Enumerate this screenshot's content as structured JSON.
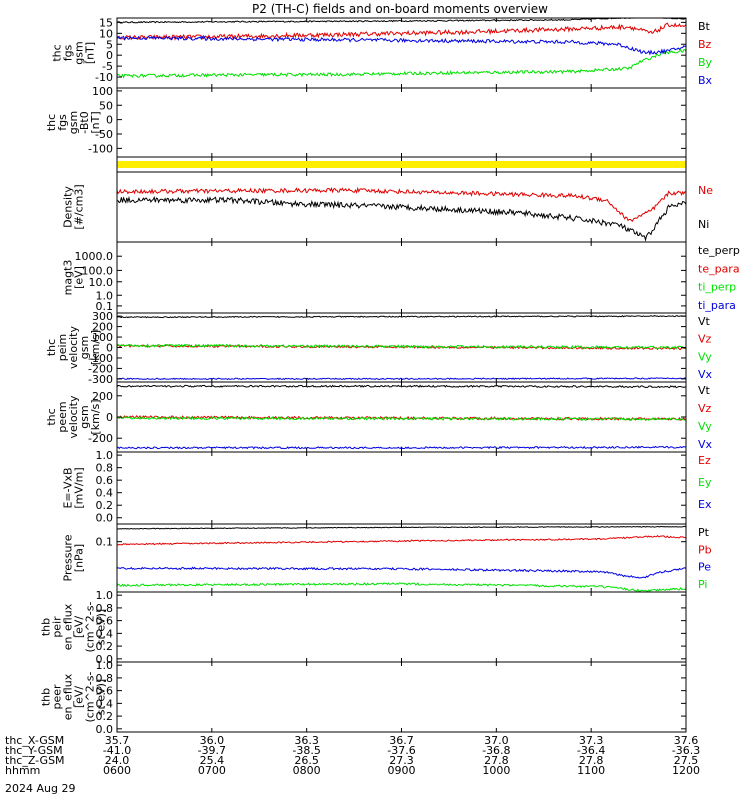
{
  "title": "P2 (TH-C) fields and on-board moments overview",
  "date": "2024 Aug 29",
  "colors": {
    "black": "#000000",
    "red": "#e00000",
    "green": "#00e000",
    "blue": "#0000e0",
    "yellow": "#ffee00"
  },
  "chart_data": [
    {
      "type": "line",
      "ylabel_lines": [
        "thc",
        "fgs",
        "gsm",
        "[nT]"
      ],
      "ylim": [
        -15,
        17
      ],
      "yticks": [
        {
          "v": 15,
          "t": "15"
        },
        {
          "v": 10,
          "t": "10"
        },
        {
          "v": 5,
          "t": "5"
        },
        {
          "v": 0,
          "t": "0"
        },
        {
          "v": -5,
          "t": "-5"
        },
        {
          "v": -10,
          "t": "-10"
        }
      ],
      "series": [
        {
          "name": "Bt",
          "color": "black",
          "points": [
            [
              0,
              15
            ],
            [
              0.2,
              15.3
            ],
            [
              0.4,
              15.5
            ],
            [
              0.6,
              15.8
            ],
            [
              0.8,
              16.2
            ],
            [
              0.88,
              17
            ],
            [
              0.94,
              17.5
            ],
            [
              1,
              16.5
            ]
          ],
          "noise": 0.3
        },
        {
          "name": "Bz",
          "color": "red",
          "points": [
            [
              0,
              8
            ],
            [
              0.2,
              8.5
            ],
            [
              0.4,
              9.5
            ],
            [
              0.6,
              10.5
            ],
            [
              0.8,
              12
            ],
            [
              0.9,
              13
            ],
            [
              0.94,
              10
            ],
            [
              0.97,
              14
            ],
            [
              1,
              13
            ]
          ],
          "noise": 1.0
        },
        {
          "name": "By",
          "color": "green",
          "points": [
            [
              0,
              -9.5
            ],
            [
              0.2,
              -9
            ],
            [
              0.4,
              -8.8
            ],
            [
              0.6,
              -8
            ],
            [
              0.8,
              -7.5
            ],
            [
              0.9,
              -6
            ],
            [
              0.92,
              -3
            ],
            [
              0.96,
              1
            ],
            [
              1,
              2
            ]
          ],
          "noise": 0.7
        },
        {
          "name": "Bx",
          "color": "blue",
          "points": [
            [
              0,
              8
            ],
            [
              0.2,
              7.5
            ],
            [
              0.4,
              7
            ],
            [
              0.6,
              6.5
            ],
            [
              0.8,
              6
            ],
            [
              0.88,
              5
            ],
            [
              0.93,
              1
            ],
            [
              0.97,
              2
            ],
            [
              1,
              4
            ]
          ],
          "noise": 0.8
        }
      ]
    },
    {
      "type": "line",
      "ylabel_lines": [
        "thc",
        "fgs",
        "gsm",
        "-Bt0",
        "[nT]"
      ],
      "ylim": [
        -130,
        110
      ],
      "yticks": [
        {
          "v": 100,
          "t": "100"
        },
        {
          "v": 50,
          "t": "50"
        },
        {
          "v": 0,
          "t": "0"
        },
        {
          "v": -50,
          "t": "-50"
        },
        {
          "v": -100,
          "t": "-100"
        }
      ],
      "series": []
    },
    {
      "type": "bar",
      "ylabel_lines": [],
      "yticks": [],
      "series": []
    },
    {
      "type": "line",
      "ylabel_lines": [
        "Density",
        "[#/cm3]"
      ],
      "ylim": [
        0,
        1
      ],
      "yticks": [],
      "series": [
        {
          "name": "Ne",
          "color": "red",
          "points": [
            [
              0,
              0.72
            ],
            [
              0.2,
              0.73
            ],
            [
              0.4,
              0.74
            ],
            [
              0.6,
              0.7
            ],
            [
              0.8,
              0.66
            ],
            [
              0.86,
              0.6
            ],
            [
              0.9,
              0.3
            ],
            [
              0.94,
              0.45
            ],
            [
              0.97,
              0.7
            ],
            [
              1,
              0.7
            ]
          ],
          "noise": 0.03
        },
        {
          "name": "Ni",
          "color": "black",
          "points": [
            [
              0,
              0.6
            ],
            [
              0.2,
              0.6
            ],
            [
              0.3,
              0.55
            ],
            [
              0.5,
              0.5
            ],
            [
              0.7,
              0.42
            ],
            [
              0.8,
              0.34
            ],
            [
              0.88,
              0.25
            ],
            [
              0.93,
              0.05
            ],
            [
              0.97,
              0.5
            ],
            [
              1,
              0.55
            ]
          ],
          "noise": 0.04
        }
      ]
    },
    {
      "type": "line",
      "ylabel_lines": [
        "magt3",
        "[eV]"
      ],
      "ylim": [
        0,
        1
      ],
      "yticks": [
        {
          "v": 0.8,
          "t": "1000.0"
        },
        {
          "v": 0.6,
          "t": "100.0"
        },
        {
          "v": 0.44,
          "t": "10.0"
        },
        {
          "v": 0.25,
          "t": "1.0"
        },
        {
          "v": 0.1,
          "t": "0.1"
        }
      ],
      "series": [
        {
          "name": "te_perp",
          "color": "black",
          "points": [],
          "noise": 0
        },
        {
          "name": "te_para",
          "color": "red",
          "points": [],
          "noise": 0
        },
        {
          "name": "ti_perp",
          "color": "green",
          "points": [],
          "noise": 0
        },
        {
          "name": "ti_para",
          "color": "blue",
          "points": [],
          "noise": 0
        }
      ]
    },
    {
      "type": "line",
      "ylabel_lines": [
        "thc",
        "peim",
        "velocity",
        "gsm",
        "[km/s]"
      ],
      "ylim": [
        -330,
        330
      ],
      "yticks": [
        {
          "v": 300,
          "t": "300"
        },
        {
          "v": 200,
          "t": "200"
        },
        {
          "v": 100,
          "t": "100"
        },
        {
          "v": 0,
          "t": "0"
        },
        {
          "v": -100,
          "t": "-100"
        },
        {
          "v": -200,
          "t": "-200"
        },
        {
          "v": -300,
          "t": "-300"
        }
      ],
      "series": [
        {
          "name": "Vt",
          "color": "black",
          "points": [
            [
              0,
              290
            ],
            [
              0.5,
              295
            ],
            [
              1,
              300
            ]
          ],
          "noise": 5
        },
        {
          "name": "Vz",
          "color": "red",
          "points": [
            [
              0,
              15
            ],
            [
              0.5,
              5
            ],
            [
              1,
              -10
            ]
          ],
          "noise": 10
        },
        {
          "name": "Vy",
          "color": "green",
          "points": [
            [
              0,
              20
            ],
            [
              0.5,
              10
            ],
            [
              1,
              0
            ]
          ],
          "noise": 12
        },
        {
          "name": "Vx",
          "color": "blue",
          "points": [
            [
              0,
              -300
            ],
            [
              0.5,
              -300
            ],
            [
              1,
              -295
            ]
          ],
          "noise": 6
        }
      ]
    },
    {
      "type": "line",
      "ylabel_lines": [
        "thc",
        "peem",
        "velocity",
        "gsm",
        "[km/s]"
      ],
      "ylim": [
        -330,
        330
      ],
      "yticks": [
        {
          "v": 200,
          "t": "200"
        },
        {
          "v": 0,
          "t": "0"
        },
        {
          "v": -200,
          "t": "-200"
        }
      ],
      "series": [
        {
          "name": "Vt",
          "color": "black",
          "points": [
            [
              0,
              290
            ],
            [
              0.5,
              290
            ],
            [
              1,
              285
            ]
          ],
          "noise": 8
        },
        {
          "name": "Vz",
          "color": "red",
          "points": [
            [
              0,
              0
            ],
            [
              0.5,
              -10
            ],
            [
              1,
              -20
            ]
          ],
          "noise": 12
        },
        {
          "name": "Vy",
          "color": "green",
          "points": [
            [
              0,
              -10
            ],
            [
              0.5,
              -15
            ],
            [
              1,
              -20
            ]
          ],
          "noise": 12
        },
        {
          "name": "Vx",
          "color": "blue",
          "points": [
            [
              0,
              -290
            ],
            [
              0.5,
              -290
            ],
            [
              1,
              -285
            ]
          ],
          "noise": 8
        }
      ]
    },
    {
      "type": "line",
      "ylabel_lines": [
        "E=-VxB",
        "[mV/m]"
      ],
      "ylim": [
        -0.1,
        1.05
      ],
      "yticks": [
        {
          "v": 1.0,
          "t": "1.0"
        },
        {
          "v": 0.8,
          "t": "0.8"
        },
        {
          "v": 0.6,
          "t": "0.6"
        },
        {
          "v": 0.4,
          "t": "0.4"
        },
        {
          "v": 0.2,
          "t": "0.2"
        },
        {
          "v": 0.0,
          "t": "0.0"
        }
      ],
      "series": [
        {
          "name": "Ez",
          "color": "red",
          "points": [],
          "noise": 0
        },
        {
          "name": "Ey",
          "color": "green",
          "points": [],
          "noise": 0
        },
        {
          "name": "Ex",
          "color": "blue",
          "points": [],
          "noise": 0
        }
      ]
    },
    {
      "type": "line",
      "ylabel_lines": [
        "Pressure",
        "[nPa]"
      ],
      "ylim": [
        0,
        1
      ],
      "yticks": [
        {
          "v": 0.74,
          "t": "0.1"
        }
      ],
      "series": [
        {
          "name": "Pt",
          "color": "black",
          "points": [
            [
              0,
              0.93
            ],
            [
              0.5,
              0.95
            ],
            [
              1,
              0.96
            ]
          ],
          "noise": 0.005
        },
        {
          "name": "Pb",
          "color": "red",
          "points": [
            [
              0,
              0.7
            ],
            [
              0.5,
              0.75
            ],
            [
              0.85,
              0.78
            ],
            [
              0.95,
              0.82
            ],
            [
              1,
              0.8
            ]
          ],
          "noise": 0.01
        },
        {
          "name": "Pe",
          "color": "blue",
          "points": [
            [
              0,
              0.35
            ],
            [
              0.5,
              0.34
            ],
            [
              0.85,
              0.3
            ],
            [
              0.92,
              0.2
            ],
            [
              0.96,
              0.3
            ],
            [
              1,
              0.35
            ]
          ],
          "noise": 0.015
        },
        {
          "name": "Pi",
          "color": "green",
          "points": [
            [
              0,
              0.1
            ],
            [
              0.5,
              0.12
            ],
            [
              0.85,
              0.08
            ],
            [
              0.92,
              0.02
            ],
            [
              1,
              0.05
            ]
          ],
          "noise": 0.015
        }
      ]
    },
    {
      "type": "line",
      "ylabel_lines": [
        "thb",
        "peir",
        "en_eflux",
        "[eV/",
        "(cm^2-s-",
        "sr-eV)]"
      ],
      "ylim": [
        -0.05,
        1.05
      ],
      "yticks": [
        {
          "v": 1.0,
          "t": "1.0"
        },
        {
          "v": 0.8,
          "t": "0.8"
        },
        {
          "v": 0.6,
          "t": "0.6"
        },
        {
          "v": 0.4,
          "t": "0.4"
        },
        {
          "v": 0.2,
          "t": "0.2"
        },
        {
          "v": 0.0,
          "t": "0.0"
        }
      ],
      "series": []
    },
    {
      "type": "line",
      "ylabel_lines": [
        "thb",
        "peer",
        "en_eflux",
        "[eV/",
        "(cm^2-s-",
        "sr-eV)]"
      ],
      "ylim": [
        -0.05,
        1.05
      ],
      "yticks": [
        {
          "v": 1.0,
          "t": "1.0"
        },
        {
          "v": 0.8,
          "t": "0.8"
        },
        {
          "v": 0.6,
          "t": "0.6"
        },
        {
          "v": 0.4,
          "t": "0.4"
        },
        {
          "v": 0.2,
          "t": "0.2"
        },
        {
          "v": 0.0,
          "t": "0.0"
        }
      ],
      "series": []
    }
  ],
  "x_axis": {
    "row_labels": [
      "thc_X-GSM",
      "thc_Y-GSM",
      "thc_Z-GSM",
      "hhmm"
    ],
    "columns": [
      [
        "35.7",
        "-41.0",
        "24.0",
        "0600"
      ],
      [
        "36.0",
        "-39.7",
        "25.4",
        "0700"
      ],
      [
        "36.3",
        "-38.5",
        "26.5",
        "0800"
      ],
      [
        "36.7",
        "-37.6",
        "27.3",
        "0900"
      ],
      [
        "37.0",
        "-36.8",
        "27.8",
        "1000"
      ],
      [
        "37.3",
        "-36.4",
        "27.8",
        "1100"
      ],
      [
        "37.6",
        "-36.3",
        "27.5",
        "1200"
      ]
    ]
  }
}
